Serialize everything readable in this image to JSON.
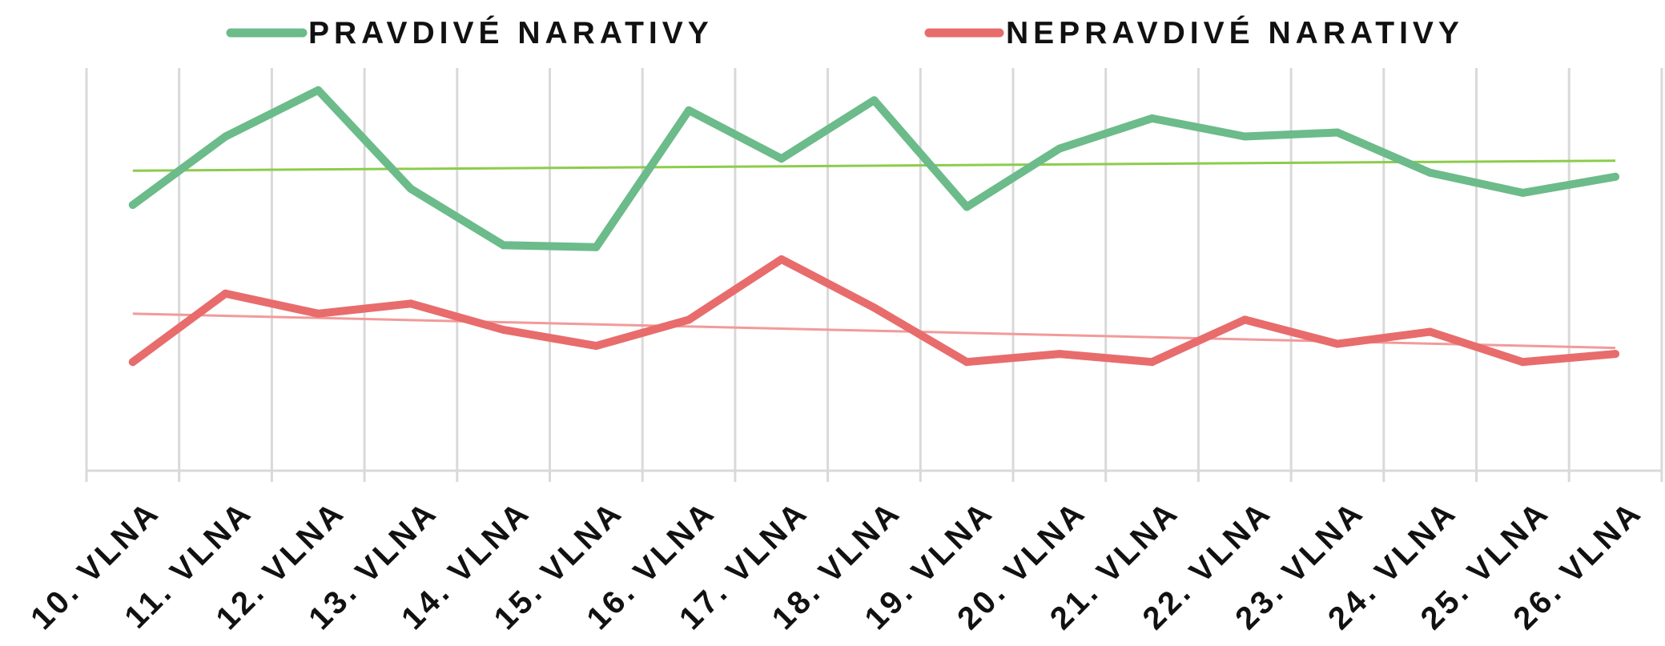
{
  "chart_data": {
    "type": "line",
    "title": "",
    "xlabel": "",
    "ylabel": "",
    "categories": [
      "10. VLNA",
      "11. VLNA",
      "12. VLNA",
      "13. VLNA",
      "14. VLNA",
      "15. VLNA",
      "16. VLNA",
      "17. VLNA",
      "18. VLNA",
      "19. VLNA",
      "20. VLNA",
      "21. VLNA",
      "22. VLNA",
      "23. VLNA",
      "24. VLNA",
      "25. VLNA",
      "26. VLNA"
    ],
    "ylim": [
      0,
      100
    ],
    "y_axis_labels_shown": false,
    "grid": "vertical",
    "legend_position": "top",
    "series": [
      {
        "name": "PRAVDIVÉ NARATIVY",
        "color": "#6cbb8a",
        "values": [
          66,
          83,
          94.5,
          70,
          56,
          55.5,
          89.5,
          77.5,
          92,
          65.5,
          80,
          87.5,
          83,
          84,
          74,
          69,
          73
        ]
      },
      {
        "name": "NEPRAVDIVÉ NARATIVY",
        "color": "#e86c6c",
        "values": [
          27,
          44,
          39,
          41.5,
          35,
          31,
          37.5,
          52.5,
          40.5,
          27,
          29,
          27,
          37.5,
          31.5,
          34.5,
          27,
          29
        ]
      }
    ],
    "trendlines": [
      {
        "series": "PRAVDIVÉ NARATIVY",
        "color": "#8ccc4c",
        "start": 74.5,
        "end": 77
      },
      {
        "series": "NEPRAVDIVÉ NARATIVY",
        "color": "#f29a9a",
        "start": 39,
        "end": 30.5
      }
    ]
  }
}
